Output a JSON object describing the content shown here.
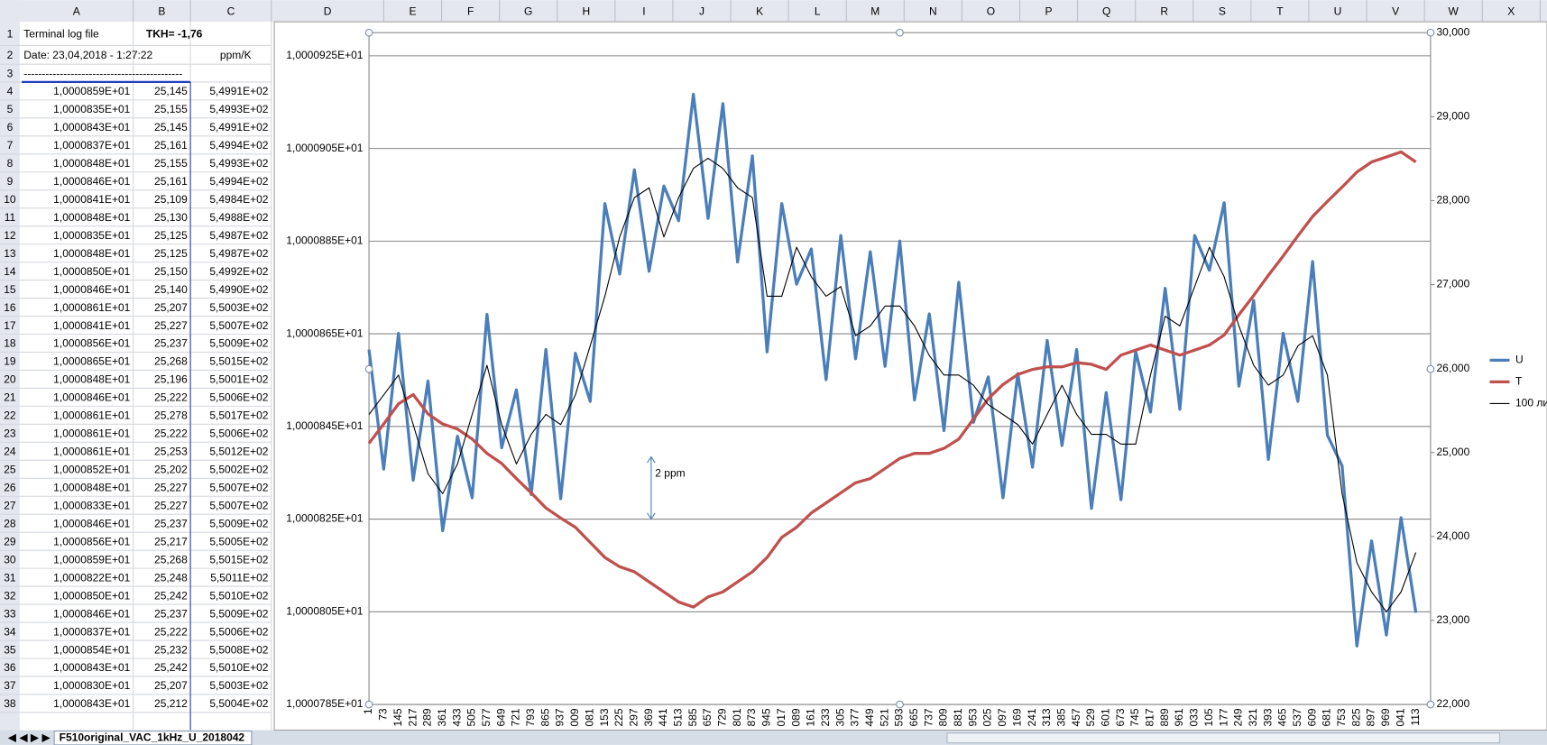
{
  "spreadsheet": {
    "column_headers": [
      "A",
      "B",
      "C",
      "D",
      "E",
      "F",
      "G",
      "H",
      "I",
      "J",
      "K",
      "L",
      "M",
      "N",
      "O",
      "P",
      "Q",
      "R",
      "S",
      "T",
      "U",
      "V",
      "W",
      "X"
    ],
    "row_numbers": [
      1,
      2,
      3,
      4,
      5,
      6,
      7,
      8,
      9,
      10,
      11,
      12,
      13,
      14,
      15,
      16,
      17,
      18,
      19,
      20,
      21,
      22,
      23,
      24,
      25,
      26,
      27,
      28,
      29,
      30,
      31,
      32,
      33,
      34,
      35,
      36,
      37,
      38
    ],
    "title_row": {
      "A": "Terminal log file",
      "B": "TKH= -1,76"
    },
    "date_row": {
      "A": "Date: 23,04,2018 - 1:27:22",
      "C": "ppm/K"
    },
    "separator": "--------------------------------------------",
    "data_rows": [
      [
        "1,0000859E+01",
        "25,145",
        "5,4991E+02"
      ],
      [
        "1,0000835E+01",
        "25,155",
        "5,4993E+02"
      ],
      [
        "1,0000843E+01",
        "25,145",
        "5,4991E+02"
      ],
      [
        "1,0000837E+01",
        "25,161",
        "5,4994E+02"
      ],
      [
        "1,0000848E+01",
        "25,155",
        "5,4993E+02"
      ],
      [
        "1,0000846E+01",
        "25,161",
        "5,4994E+02"
      ],
      [
        "1,0000841E+01",
        "25,109",
        "5,4984E+02"
      ],
      [
        "1,0000848E+01",
        "25,130",
        "5,4988E+02"
      ],
      [
        "1,0000835E+01",
        "25,125",
        "5,4987E+02"
      ],
      [
        "1,0000848E+01",
        "25,125",
        "5,4987E+02"
      ],
      [
        "1,0000850E+01",
        "25,150",
        "5,4992E+02"
      ],
      [
        "1,0000846E+01",
        "25,140",
        "5,4990E+02"
      ],
      [
        "1,0000861E+01",
        "25,207",
        "5,5003E+02"
      ],
      [
        "1,0000841E+01",
        "25,227",
        "5,5007E+02"
      ],
      [
        "1,0000856E+01",
        "25,237",
        "5,5009E+02"
      ],
      [
        "1,0000865E+01",
        "25,268",
        "5,5015E+02"
      ],
      [
        "1,0000848E+01",
        "25,196",
        "5,5001E+02"
      ],
      [
        "1,0000846E+01",
        "25,222",
        "5,5006E+02"
      ],
      [
        "1,0000861E+01",
        "25,278",
        "5,5017E+02"
      ],
      [
        "1,0000861E+01",
        "25,222",
        "5,5006E+02"
      ],
      [
        "1,0000861E+01",
        "25,253",
        "5,5012E+02"
      ],
      [
        "1,0000852E+01",
        "25,202",
        "5,5002E+02"
      ],
      [
        "1,0000848E+01",
        "25,227",
        "5,5007E+02"
      ],
      [
        "1,0000833E+01",
        "25,227",
        "5,5007E+02"
      ],
      [
        "1,0000846E+01",
        "25,237",
        "5,5009E+02"
      ],
      [
        "1,0000856E+01",
        "25,217",
        "5,5005E+02"
      ],
      [
        "1,0000859E+01",
        "25,268",
        "5,5015E+02"
      ],
      [
        "1,0000822E+01",
        "25,248",
        "5,5011E+02"
      ],
      [
        "1,0000850E+01",
        "25,242",
        "5,5010E+02"
      ],
      [
        "1,0000846E+01",
        "25,237",
        "5,5009E+02"
      ],
      [
        "1,0000837E+01",
        "25,222",
        "5,5006E+02"
      ],
      [
        "1,0000854E+01",
        "25,232",
        "5,5008E+02"
      ],
      [
        "1,0000843E+01",
        "25,242",
        "5,5010E+02"
      ],
      [
        "1,0000830E+01",
        "25,207",
        "5,5003E+02"
      ],
      [
        "1,0000843E+01",
        "25,212",
        "5,5004E+02"
      ]
    ]
  },
  "sheet_tab": "F510original_VAC_1kHz_U_2018042",
  "chart_data": {
    "type": "line",
    "grid": true,
    "legend": "right",
    "annotation": "2 ppm",
    "categories": [
      "1",
      "73",
      "145",
      "217",
      "289",
      "361",
      "433",
      "505",
      "577",
      "649",
      "721",
      "793",
      "865",
      "937",
      "009",
      "081",
      "153",
      "225",
      "297",
      "369",
      "441",
      "513",
      "585",
      "657",
      "729",
      "801",
      "873",
      "945",
      "017",
      "089",
      "161",
      "233",
      "305",
      "377",
      "449",
      "521",
      "593",
      "665",
      "737",
      "809",
      "881",
      "953",
      "025",
      "097",
      "169",
      "241",
      "313",
      "385",
      "457",
      "529",
      "601",
      "673",
      "745",
      "817",
      "889",
      "961",
      "033",
      "105",
      "177",
      "249",
      "321",
      "393",
      "465",
      "537",
      "609",
      "681",
      "753",
      "825",
      "897",
      "969",
      "041",
      "113"
    ],
    "ylim": [
      10.0000785,
      10.000093
    ],
    "yticks": [
      {
        "value": 10.0000785,
        "label": "1,0000785E+01"
      },
      {
        "value": 10.0000805,
        "label": "1,0000805E+01"
      },
      {
        "value": 10.0000825,
        "label": "1,0000825E+01"
      },
      {
        "value": 10.0000845,
        "label": "1,0000845E+01"
      },
      {
        "value": 10.0000865,
        "label": "1,0000865E+01"
      },
      {
        "value": 10.0000885,
        "label": "1,0000885E+01"
      },
      {
        "value": 10.0000905,
        "label": "1,0000905E+01"
      },
      {
        "value": 10.0000925,
        "label": "1,0000925E+01"
      }
    ],
    "y2lim": [
      22,
      30
    ],
    "y2ticks": [
      {
        "value": 22,
        "label": "22,000"
      },
      {
        "value": 23,
        "label": "23,000"
      },
      {
        "value": 24,
        "label": "24,000"
      },
      {
        "value": 25,
        "label": "25,000"
      },
      {
        "value": 26,
        "label": "26,000"
      },
      {
        "value": 27,
        "label": "27,000"
      },
      {
        "value": 28,
        "label": "28,000"
      },
      {
        "value": 29,
        "label": "29,000"
      },
      {
        "value": 30,
        "label": "30,000"
      }
    ],
    "series": [
      {
        "name": "U",
        "color": "#4a7ebb",
        "width": 3,
        "values": [
          10.00008616,
          10.00008358,
          10.00008651,
          10.00008334,
          10.00008548,
          10.00008225,
          10.00008429,
          10.00008296,
          10.00008692,
          10.00008404,
          10.00008529,
          10.00008303,
          10.00008616,
          10.00008294,
          10.00008608,
          10.00008504,
          10.00008931,
          10.00008779,
          10.00009004,
          10.00008785,
          10.00008969,
          10.00008894,
          10.00009167,
          10.00008899,
          10.00009147,
          10.00008805,
          10.00009034,
          10.00008611,
          10.00008931,
          10.00008757,
          10.00008833,
          10.00008551,
          10.00008862,
          10.00008596,
          10.00008827,
          10.0000858,
          10.0000885,
          10.00008507,
          10.00008693,
          10.00008441,
          10.00008761,
          10.00008459,
          10.00008557,
          10.00008296,
          10.00008564,
          10.00008362,
          10.00008636,
          10.00008409,
          10.00008616,
          10.00008273,
          10.00008523,
          10.00008292,
          10.00008612,
          10.00008481,
          10.00008748,
          10.00008487,
          10.00008862,
          10.00008787,
          10.00008933,
          10.00008537,
          10.00008722,
          10.00008379,
          10.00008651,
          10.00008504,
          10.00008806,
          10.00008431,
          10.00008365,
          10.00007976,
          10.00008203,
          10.00008,
          10.00008253,
          10.00008048
        ]
      },
      {
        "name": "T",
        "color": "#c0504d",
        "width": 3,
        "axis": "y2",
        "values": [
          25.11,
          25.34,
          25.58,
          25.69,
          25.46,
          25.34,
          25.28,
          25.16,
          24.99,
          24.87,
          24.69,
          24.52,
          24.34,
          24.22,
          24.11,
          23.93,
          23.75,
          23.64,
          23.58,
          23.46,
          23.34,
          23.22,
          23.16,
          23.28,
          23.34,
          23.46,
          23.58,
          23.75,
          23.99,
          24.11,
          24.28,
          24.4,
          24.52,
          24.64,
          24.69,
          24.81,
          24.93,
          24.99,
          24.99,
          25.05,
          25.16,
          25.4,
          25.64,
          25.81,
          25.93,
          25.99,
          26.02,
          26.02,
          26.07,
          26.05,
          25.99,
          26.16,
          26.22,
          26.28,
          26.22,
          26.16,
          26.22,
          26.28,
          26.4,
          26.64,
          26.87,
          27.11,
          27.34,
          27.58,
          27.81,
          27.99,
          28.16,
          28.34,
          28.46,
          28.52,
          28.58,
          28.46
        ]
      },
      {
        "name": "100 ли",
        "color": "#000000",
        "width": 1,
        "values": [
          10.00008476,
          10.00008518,
          10.00008561,
          10.00008454,
          10.00008348,
          10.00008305,
          10.00008369,
          10.00008476,
          10.00008582,
          10.00008454,
          10.00008369,
          10.00008433,
          10.00008476,
          10.00008454,
          10.00008518,
          10.00008624,
          10.00008731,
          10.00008859,
          10.00008944,
          10.00008965,
          10.00008859,
          10.00008944,
          10.00009007,
          10.00009029,
          10.00009007,
          10.00008965,
          10.00008944,
          10.00008731,
          10.00008731,
          10.00008837,
          10.00008773,
          10.00008731,
          10.00008752,
          10.00008646,
          10.00008667,
          10.0000871,
          10.0000871,
          10.00008667,
          10.00008603,
          10.00008561,
          10.00008561,
          10.00008539,
          10.00008497,
          10.00008476,
          10.00008454,
          10.00008412,
          10.00008476,
          10.00008539,
          10.00008476,
          10.00008433,
          10.00008433,
          10.00008412,
          10.00008412,
          10.00008561,
          10.00008688,
          10.00008667,
          10.00008752,
          10.00008837,
          10.00008773,
          10.00008667,
          10.00008582,
          10.00008539,
          10.00008561,
          10.00008624,
          10.00008646,
          10.00008561,
          10.00008305,
          10.00008156,
          10.00008093,
          10.0000805,
          10.00008093,
          10.00008178
        ]
      }
    ]
  }
}
